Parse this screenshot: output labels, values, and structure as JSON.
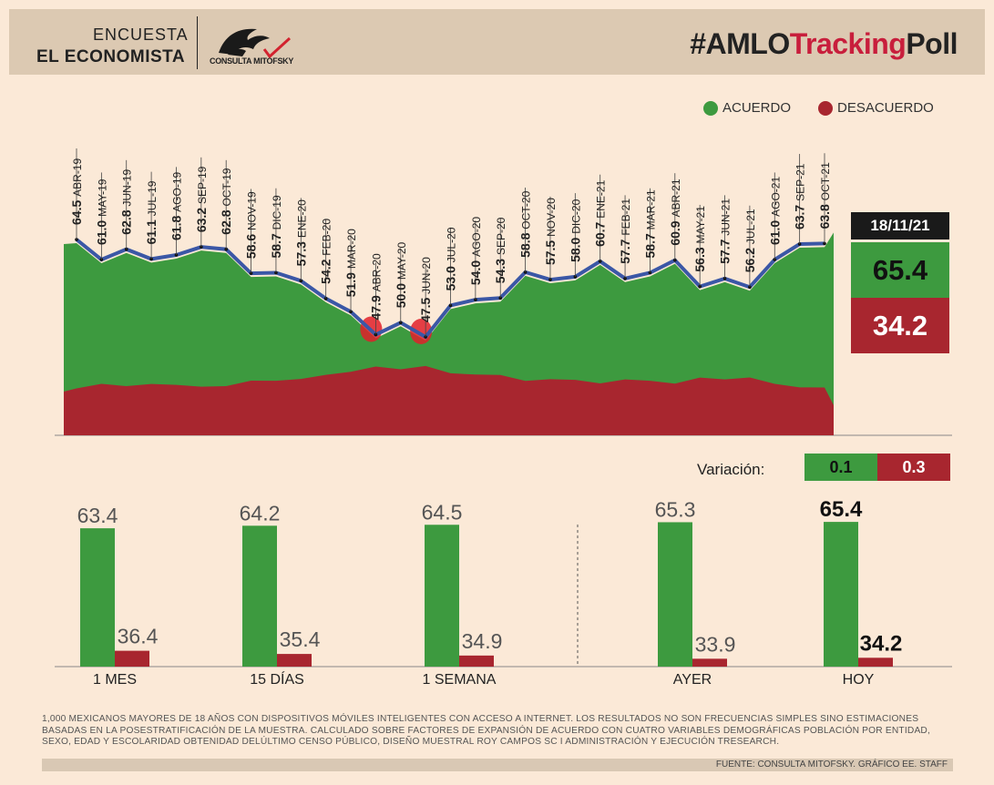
{
  "header": {
    "title_line1": "ENCUESTA",
    "title_line2": "EL ECONOMISTA",
    "logo_text": "CONSULTA MITOFSKY",
    "hashtag_prefix": "#AMLO",
    "hashtag_mid": "Tracking",
    "hashtag_suffix": "Poll"
  },
  "legend": {
    "acuerdo": "ACUERDO",
    "desacuerdo": "DESACUERDO"
  },
  "colors": {
    "green": "#3d9a3f",
    "red": "#a8262f",
    "blue": "#3b57a6",
    "bright_red": "#e0202a"
  },
  "current": {
    "date": "18/11/21",
    "acuerdo": "65.4",
    "desacuerdo": "34.2"
  },
  "variation": {
    "label": "Variación:",
    "acuerdo": "0.1",
    "desacuerdo": "0.3"
  },
  "chart_data": [
    {
      "type": "line",
      "series_type_note": "monthly approval line over green/red area",
      "x": [
        "ABR-19",
        "MAY-19",
        "JUN-19",
        "JUL-19",
        "AGO-19",
        "SEP-19",
        "OCT-19",
        "NOV-19",
        "DIC-19",
        "ENE-20",
        "FEB-20",
        "MAR-20",
        "ABR-20",
        "MAY-20",
        "JUN-20",
        "JUL-20",
        "AGO-20",
        "SEP-20",
        "OCT-20",
        "NOV-20",
        "DIC-20",
        "ENE-21",
        "FEB-21",
        "MAR-21",
        "ABR-21",
        "MAY-21",
        "JUN-21",
        "JUL-21",
        "AGO-21",
        "SEP-21",
        "OCT-21"
      ],
      "labels": [
        "64.5",
        "61.0",
        "62.8",
        "61.1",
        "61.8",
        "63.2",
        "62.8",
        "58.6",
        "58.7",
        "57.3",
        "54.2",
        "51.9",
        "47.9",
        "50.0",
        "47.5",
        "53.0",
        "54.0",
        "54.3",
        "58.8",
        "57.5",
        "58.0",
        "60.7",
        "57.7",
        "58.7",
        "60.9",
        "56.3",
        "57.7",
        "56.2",
        "61.0",
        "63.7",
        "63.8"
      ],
      "values": [
        64.5,
        61.0,
        62.8,
        61.1,
        61.8,
        63.2,
        62.8,
        58.6,
        58.7,
        57.3,
        54.2,
        51.9,
        47.9,
        50.0,
        47.5,
        53.0,
        54.0,
        54.3,
        58.8,
        57.5,
        58.0,
        60.7,
        57.7,
        58.7,
        60.9,
        56.3,
        57.7,
        56.2,
        61.0,
        63.7,
        63.8
      ],
      "last_value": 63.8,
      "end_value": 65.4,
      "ylim": [
        0,
        100
      ]
    },
    {
      "type": "bar",
      "categories": [
        "1 MES",
        "15 DÍAS",
        "1 SEMANA",
        "AYER",
        "HOY"
      ],
      "series": [
        {
          "values": [
            63.4,
            64.2,
            64.5,
            65.3,
            65.4
          ],
          "labels": [
            "63.4",
            "64.2",
            "64.5",
            "65.3",
            "65.4"
          ]
        },
        {
          "values": [
            36.4,
            35.4,
            34.9,
            33.9,
            34.2
          ],
          "labels": [
            "36.4",
            "35.4",
            "34.9",
            "33.9",
            "34.2"
          ]
        }
      ],
      "highlight_index": 4
    }
  ],
  "footnote": {
    "text": "1,000 MEXICANOS MAYORES DE 18 AÑOS CON DISPOSITIVOS MÓVILES INTELIGENTES CON ACCESO A INTERNET. LOS RESULTADOS NO SON FRECUENCIAS SIMPLES SINO ESTIMACIONES BASADAS EN LA POSESTRATIFICACIÓN DE LA MUESTRA. CALCULADO SOBRE FACTORES DE EXPANSIÓN DE ACUERDO CON CUATRO VARIABLES DEMOGRÁFICAS POBLACIÓN POR ENTIDAD, SEXO, EDAD Y ESCOLARIDAD OBTENIDAD DELÚLTIMO CENSO PÚBLICO, DISEÑO MUESTRAL ROY CAMPOS SC I ADMINISTRACIÓN Y EJECUCIÓN TRESEARCH.",
    "source": "FUENTE: CONSULTA MITOFSKY. GRÁFICO EE. STAFF"
  }
}
